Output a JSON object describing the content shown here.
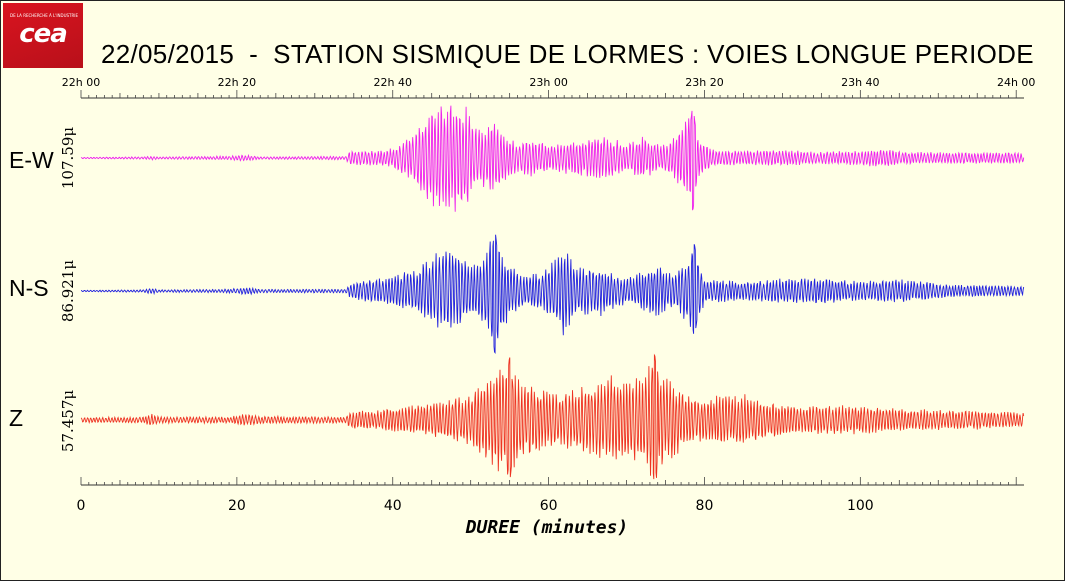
{
  "logo": {
    "text": "cea",
    "small_text": "DE LA RECHERCHE À L'INDUSTRIE"
  },
  "title": "22/05/2015  -  STATION SISMIQUE DE LORMES : VOIES LONGUE PERIODE",
  "chart_data": {
    "type": "line",
    "title": "22/05/2015  -  STATION SISMIQUE DE LORMES : VOIES LONGUE PERIODE",
    "xlabel": "DUREE  (minutes)",
    "xlim": [
      0,
      121
    ],
    "x_ticks": [
      0,
      20,
      40,
      60,
      80,
      100
    ],
    "top_axis": {
      "ticks": [
        {
          "minute": 0,
          "label": "22h 00"
        },
        {
          "minute": 20,
          "label": "22h 20"
        },
        {
          "minute": 40,
          "label": "22h 40"
        },
        {
          "minute": 60,
          "label": "23h 00"
        },
        {
          "minute": 80,
          "label": "23h 20"
        },
        {
          "minute": 100,
          "label": "23h 40"
        },
        {
          "minute": 120,
          "label": "24h 00"
        }
      ]
    },
    "series": [
      {
        "name": "E-W",
        "scale_label": "107.59μ",
        "color": "#ee22ee",
        "envelope": [
          [
            0,
            0.01
          ],
          [
            8,
            0.02
          ],
          [
            9,
            0.03
          ],
          [
            10,
            0.02
          ],
          [
            19,
            0.03
          ],
          [
            21,
            0.05
          ],
          [
            23,
            0.02
          ],
          [
            34,
            0.03
          ],
          [
            34.5,
            0.12
          ],
          [
            38,
            0.12
          ],
          [
            40,
            0.16
          ],
          [
            41,
            0.25
          ],
          [
            43,
            0.45
          ],
          [
            44.5,
            0.72
          ],
          [
            46,
            0.88
          ],
          [
            47.5,
            1.0
          ],
          [
            49,
            0.92
          ],
          [
            50.5,
            0.55
          ],
          [
            52,
            0.45
          ],
          [
            53,
            0.62
          ],
          [
            54.5,
            0.35
          ],
          [
            56,
            0.25
          ],
          [
            58,
            0.32
          ],
          [
            60,
            0.22
          ],
          [
            63,
            0.3
          ],
          [
            67,
            0.35
          ],
          [
            70,
            0.25
          ],
          [
            72,
            0.35
          ],
          [
            74.5,
            0.2
          ],
          [
            76,
            0.32
          ],
          [
            78,
            0.72
          ],
          [
            79,
            0.4
          ],
          [
            81,
            0.14
          ],
          [
            85,
            0.12
          ],
          [
            90,
            0.13
          ],
          [
            95,
            0.1
          ],
          [
            100,
            0.12
          ],
          [
            103,
            0.15
          ],
          [
            106,
            0.1
          ],
          [
            112,
            0.09
          ],
          [
            121,
            0.09
          ]
        ],
        "spikes": [
          {
            "minute": 78.5,
            "amp": 0.85
          }
        ]
      },
      {
        "name": "N-S",
        "scale_label": "86.921μ",
        "color": "#2222dd",
        "envelope": [
          [
            0,
            0.01
          ],
          [
            8,
            0.02
          ],
          [
            9,
            0.05
          ],
          [
            10,
            0.02
          ],
          [
            19,
            0.03
          ],
          [
            21,
            0.06
          ],
          [
            23,
            0.03
          ],
          [
            34,
            0.03
          ],
          [
            34.5,
            0.12
          ],
          [
            38,
            0.2
          ],
          [
            41,
            0.28
          ],
          [
            43,
            0.35
          ],
          [
            45,
            0.55
          ],
          [
            47,
            0.72
          ],
          [
            48.5,
            0.65
          ],
          [
            50,
            0.45
          ],
          [
            51.5,
            0.55
          ],
          [
            53,
            0.95
          ],
          [
            55,
            0.4
          ],
          [
            57,
            0.25
          ],
          [
            59,
            0.3
          ],
          [
            61,
            0.55
          ],
          [
            62,
            0.8
          ],
          [
            63.5,
            0.35
          ],
          [
            66,
            0.45
          ],
          [
            68,
            0.3
          ],
          [
            70,
            0.22
          ],
          [
            72,
            0.3
          ],
          [
            74,
            0.45
          ],
          [
            76,
            0.25
          ],
          [
            78,
            0.55
          ],
          [
            78.8,
            0.72
          ],
          [
            80,
            0.2
          ],
          [
            85,
            0.15
          ],
          [
            90,
            0.2
          ],
          [
            95,
            0.22
          ],
          [
            100,
            0.15
          ],
          [
            104,
            0.2
          ],
          [
            108,
            0.16
          ],
          [
            112,
            0.1
          ],
          [
            121,
            0.08
          ]
        ],
        "spikes": [
          {
            "minute": 53.1,
            "amp": 1.0
          },
          {
            "minute": 78.7,
            "amp": 0.75
          }
        ]
      },
      {
        "name": "Z",
        "scale_label": "57.457μ",
        "color": "#ee3322",
        "envelope": [
          [
            0,
            0.04
          ],
          [
            8,
            0.05
          ],
          [
            9,
            0.1
          ],
          [
            10,
            0.05
          ],
          [
            19,
            0.05
          ],
          [
            21,
            0.1
          ],
          [
            23,
            0.06
          ],
          [
            34,
            0.05
          ],
          [
            34.5,
            0.15
          ],
          [
            38,
            0.15
          ],
          [
            40,
            0.2
          ],
          [
            44,
            0.25
          ],
          [
            46,
            0.3
          ],
          [
            48,
            0.35
          ],
          [
            50,
            0.42
          ],
          [
            51.5,
            0.6
          ],
          [
            53,
            0.82
          ],
          [
            55,
            0.95
          ],
          [
            57,
            0.6
          ],
          [
            60,
            0.45
          ],
          [
            63,
            0.5
          ],
          [
            66,
            0.58
          ],
          [
            68,
            0.75
          ],
          [
            70,
            0.65
          ],
          [
            72,
            0.7
          ],
          [
            73.5,
            1.0
          ],
          [
            75,
            0.7
          ],
          [
            77,
            0.5
          ],
          [
            79,
            0.35
          ],
          [
            82,
            0.4
          ],
          [
            85,
            0.45
          ],
          [
            88,
            0.3
          ],
          [
            90,
            0.28
          ],
          [
            92,
            0.2
          ],
          [
            95,
            0.25
          ],
          [
            100,
            0.22
          ],
          [
            103,
            0.2
          ],
          [
            106,
            0.18
          ],
          [
            110,
            0.16
          ],
          [
            115,
            0.15
          ],
          [
            121,
            0.12
          ]
        ],
        "spikes": [
          {
            "minute": 55.0,
            "amp": 1.0
          },
          {
            "minute": 73.6,
            "amp": 1.05
          }
        ]
      }
    ]
  }
}
